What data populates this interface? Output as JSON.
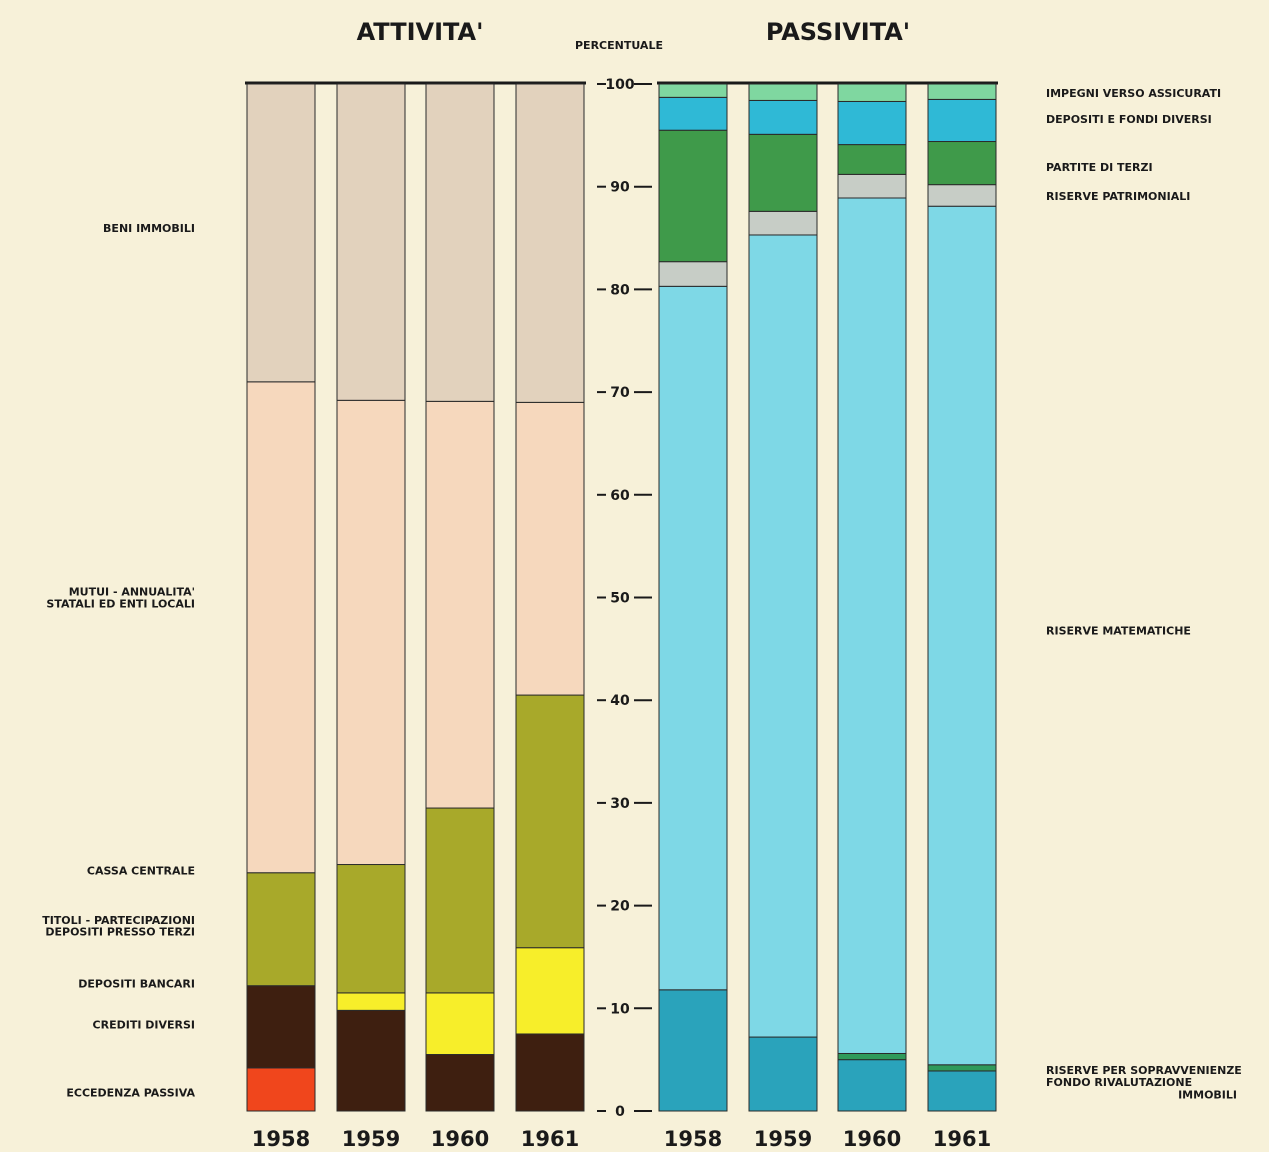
{
  "chart_data": {
    "type": "bar",
    "stacked": true,
    "ylabel": "PERCENTUALE",
    "ylim": [
      0,
      100
    ],
    "y_ticks": [
      "0",
      "10",
      "20",
      "30",
      "40",
      "50",
      "60",
      "70",
      "80",
      "90",
      "100"
    ],
    "grid": false,
    "panels": [
      {
        "title": "ATTIVITA'",
        "categories": [
          "1958",
          "1959",
          "1960",
          "1961"
        ],
        "series": [
          {
            "name": "ECCEDENZA PASSIVA",
            "color": "#f0461c",
            "values": [
              4.2,
              0,
              0,
              0
            ]
          },
          {
            "name": "CREDITI DIVERSI",
            "color": "#3e1f10",
            "values": [
              8.0,
              9.8,
              5.5,
              7.5
            ]
          },
          {
            "name": "DEPOSITI BANCARI",
            "color": "#f7ee2a",
            "values": [
              0,
              1.7,
              6.0,
              8.4
            ]
          },
          {
            "name": "TITOLI - PARTECIPAZIONI DEPOSITI PRESSO TERZI",
            "color": "#a8a92a",
            "values": [
              11.0,
              12.5,
              18.0,
              24.6
            ]
          },
          {
            "name": "CASSA CENTRALE",
            "color": "#a8a92a",
            "values": [
              0,
              0,
              0,
              0
            ]
          },
          {
            "name": "MUTUI - ANNUALITA' STATALI ED ENTI LOCALI",
            "color": "#f6d8bd",
            "values": [
              47.8,
              45.2,
              39.6,
              28.5
            ]
          },
          {
            "name": "BENI IMMOBILI",
            "color": "#e2d2bd",
            "values": [
              29.0,
              30.8,
              30.9,
              31.0
            ]
          }
        ]
      },
      {
        "title": "PASSIVITA'",
        "categories": [
          "1958",
          "1959",
          "1960",
          "1961"
        ],
        "series": [
          {
            "name": "FONDO RIVALUTAZIONE IMMOBILI",
            "color": "#2aa3bb",
            "values": [
              11.8,
              7.2,
              5.0,
              3.9
            ]
          },
          {
            "name": "RISERVE PER SOPRAVVENIENZE",
            "color": "#2f9a5a",
            "values": [
              0,
              0,
              0.6,
              0.6
            ]
          },
          {
            "name": "RISERVE MATEMATICHE",
            "color": "#7ed8e6",
            "values": [
              68.5,
              78.1,
              83.3,
              83.6
            ]
          },
          {
            "name": "RISERVE PATRIMONIALI",
            "color": "#c7cdc6",
            "values": [
              2.4,
              2.3,
              2.3,
              2.1
            ]
          },
          {
            "name": "PARTITE DI TERZI",
            "color": "#3f9a4a",
            "values": [
              12.8,
              7.5,
              2.9,
              4.2
            ]
          },
          {
            "name": "DEPOSITI E FONDI DIVERSI",
            "color": "#2fb9d6",
            "values": [
              3.2,
              3.3,
              4.2,
              4.1
            ]
          },
          {
            "name": "IMPEGNI VERSO ASSICURATI",
            "color": "#7fd7a0",
            "values": [
              1.3,
              1.6,
              1.7,
              1.5
            ]
          }
        ]
      }
    ],
    "left_labels": [
      {
        "text": "BENI IMMOBILI",
        "y": 86
      },
      {
        "text": "MUTUI - ANNUALITA'",
        "y": 50.6
      },
      {
        "text": "STATALI ED ENTI LOCALI",
        "y": 49.4
      },
      {
        "text": "CASSA CENTRALE",
        "y": 23.4
      },
      {
        "text": "TITOLI - PARTECIPAZIONI",
        "y": 18.6
      },
      {
        "text": "DEPOSITI PRESSO TERZI",
        "y": 17.5
      },
      {
        "text": "DEPOSITI BANCARI",
        "y": 12.4
      },
      {
        "text": "CREDITI DIVERSI",
        "y": 8.4
      },
      {
        "text": "ECCEDENZA PASSIVA",
        "y": 1.8
      }
    ],
    "right_labels": [
      {
        "text": "IMPEGNI VERSO ASSICURATI",
        "y": 99.1
      },
      {
        "text": "DEPOSITI E FONDI DIVERSI",
        "y": 96.6
      },
      {
        "text": "PARTITE DI TERZI",
        "y": 91.9
      },
      {
        "text": "RISERVE PATRIMONIALI",
        "y": 89.1
      },
      {
        "text": "RISERVE MATEMATICHE",
        "y": 46.8
      },
      {
        "text": "RISERVE PER SOPRAVVENIENZE",
        "y": 4.0
      },
      {
        "text": "FONDO RIVALUTAZIONE",
        "y": 2.8
      },
      {
        "text": "IMMOBILI",
        "y": 1.6,
        "indent": true
      }
    ]
  }
}
